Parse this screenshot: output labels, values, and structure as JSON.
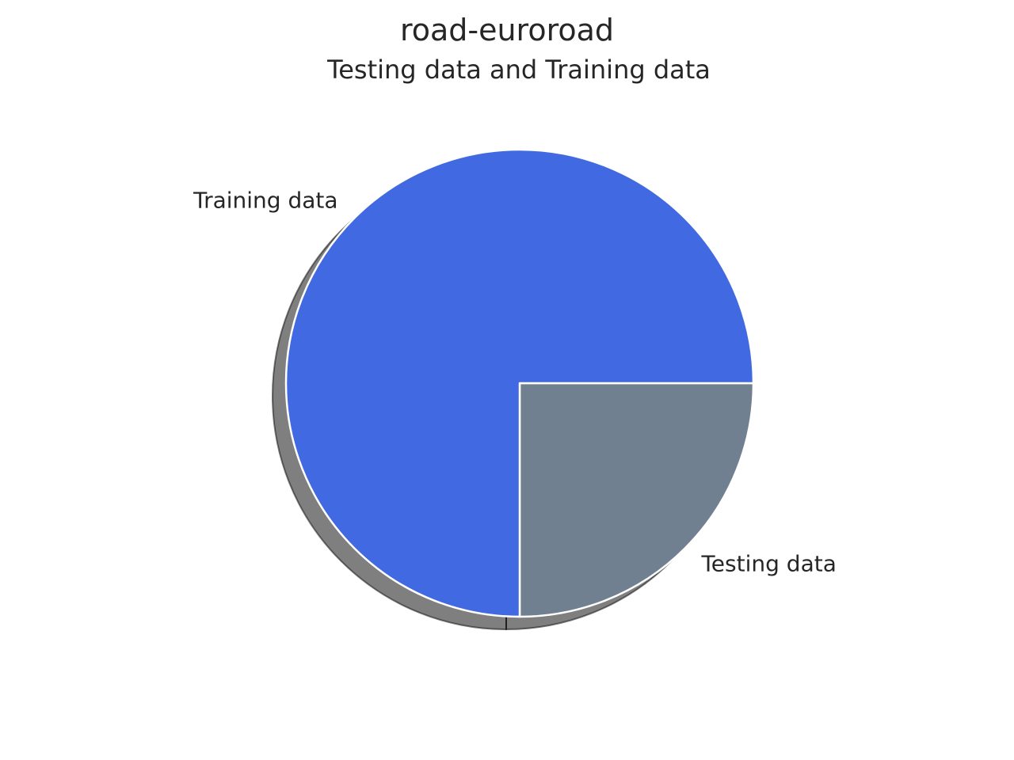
{
  "chart_data": {
    "type": "pie",
    "title": "road-euroroad",
    "subtitle": "Testing data and Training data",
    "slices": [
      {
        "label": "Testing data",
        "value": 25,
        "color": "#708090"
      },
      {
        "label": "Training data",
        "value": 75,
        "color": "#4169e1"
      }
    ],
    "start_angle_deg": 0,
    "direction": "clockwise",
    "shadow": true,
    "wedge_edge_color": "#ffffff"
  }
}
